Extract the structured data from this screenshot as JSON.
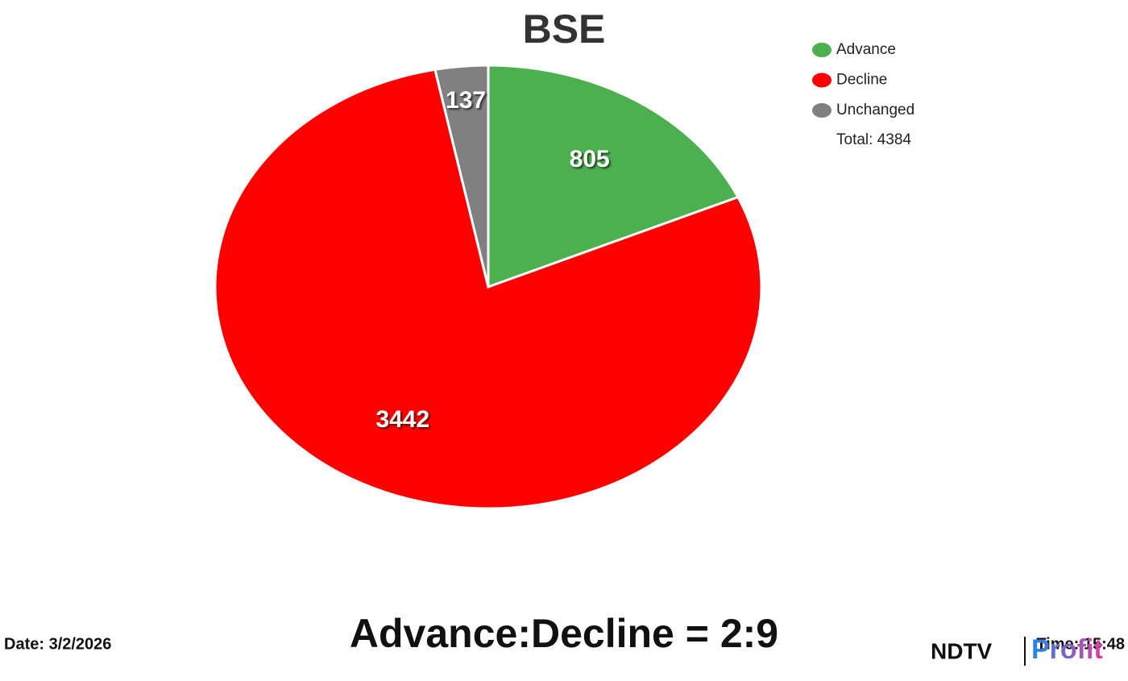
{
  "chart_data": {
    "type": "pie",
    "title": "BSE",
    "categories": [
      "Advance",
      "Decline",
      "Unchanged"
    ],
    "values": [
      805,
      3442,
      137
    ],
    "colors": [
      "#4caf50",
      "#ff0000",
      "#808080"
    ],
    "total_label": "Total: 4384",
    "ratio_label": "Advance:Decline = 2:9"
  },
  "footer": {
    "date": "Date: 3/2/2026",
    "time": "Time: 15:48",
    "logo_left": "NDTV",
    "logo_right": "Profit"
  }
}
